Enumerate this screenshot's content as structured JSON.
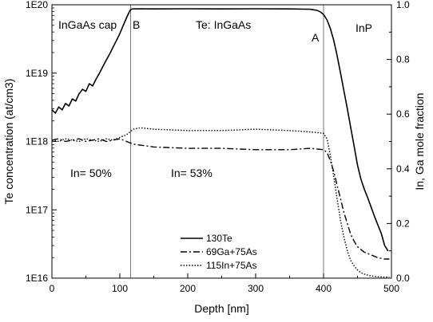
{
  "chart_data": {
    "type": "line",
    "title": "",
    "xlabel": "Depth [nm]",
    "ylabel_left": "Te concentration (at/cm3)",
    "ylabel_right": "In, Ga mole fraction",
    "xlim": [
      0,
      500
    ],
    "ylim_left": [
      1e+16,
      1e+20
    ],
    "yscale_left": "log",
    "ylim_right": [
      0.0,
      1.0
    ],
    "x_ticks": [
      "0",
      "100",
      "200",
      "300",
      "400",
      "500"
    ],
    "y_left_ticks": [
      "1E16",
      "1E17",
      "1E18",
      "1E19",
      "1E20"
    ],
    "y_right_ticks": [
      "0.0",
      "0.2",
      "0.4",
      "0.6",
      "0.8",
      "1.0"
    ],
    "grid": false,
    "legend_position": "bottom-center",
    "interfaces": [
      {
        "label": "B",
        "x": 116
      },
      {
        "label": "A",
        "x": 400
      }
    ],
    "annotations": [
      {
        "text": "InGaAs cap"
      },
      {
        "text": "Te: InGaAs"
      },
      {
        "text": "InP"
      },
      {
        "text": "In= 50%"
      },
      {
        "text": "In= 53%"
      }
    ],
    "series": [
      {
        "name": "130Te",
        "axis": "left",
        "style": "solid",
        "x": [
          0,
          5,
          10,
          15,
          20,
          25,
          30,
          35,
          40,
          45,
          50,
          55,
          60,
          65,
          70,
          75,
          80,
          85,
          90,
          95,
          100,
          105,
          110,
          115,
          118,
          130,
          150,
          200,
          250,
          300,
          350,
          380,
          390,
          395,
          400,
          405,
          410,
          415,
          420,
          425,
          430,
          435,
          440,
          445,
          450,
          455,
          460,
          465,
          470,
          475,
          480,
          485,
          490,
          495
        ],
        "y": [
          2.9e+18,
          2.6e+18,
          3.2e+18,
          2.9e+18,
          3.6e+18,
          3.3e+18,
          4.2e+18,
          3.9e+18,
          5e+18,
          5.8e+18,
          5.4e+18,
          7e+18,
          6.5e+18,
          8.2e+18,
          1e+19,
          1.25e+19,
          1.55e+19,
          1.9e+19,
          2.4e+19,
          3e+19,
          3.8e+19,
          5e+19,
          6.5e+19,
          8.3e+19,
          8.7e+19,
          8.75e+19,
          8.7e+19,
          8.75e+19,
          8.7e+19,
          8.75e+19,
          8.7e+19,
          8.6e+19,
          8.3e+19,
          7.9e+19,
          7.2e+19,
          6e+19,
          4.5e+19,
          3e+19,
          1.8e+19,
          1e+19,
          5.5e+18,
          3e+18,
          1.6e+18,
          8.5e+17,
          4.5e+17,
          2.8e+17,
          2e+17,
          1.5e+17,
          1.1e+17,
          8e+16,
          6e+16,
          4.5e+16,
          3e+16,
          2.5e+16
        ]
      },
      {
        "name": "69Ga+75As",
        "axis": "right",
        "style": "dash-dot",
        "x": [
          0,
          10,
          20,
          30,
          40,
          50,
          60,
          70,
          80,
          90,
          100,
          110,
          120,
          150,
          200,
          250,
          300,
          350,
          380,
          400,
          405,
          410,
          415,
          420,
          425,
          430,
          435,
          440,
          445,
          450,
          460,
          470,
          480,
          490,
          497
        ],
        "y": [
          0.505,
          0.51,
          0.5,
          0.505,
          0.51,
          0.5,
          0.505,
          0.51,
          0.5,
          0.505,
          0.51,
          0.5,
          0.49,
          0.48,
          0.475,
          0.475,
          0.47,
          0.47,
          0.475,
          0.47,
          0.46,
          0.43,
          0.39,
          0.34,
          0.29,
          0.24,
          0.2,
          0.16,
          0.135,
          0.115,
          0.095,
          0.085,
          0.075,
          0.07,
          0.07
        ]
      },
      {
        "name": "115In+75As",
        "axis": "right",
        "style": "dotted",
        "x": [
          0,
          10,
          20,
          30,
          40,
          50,
          60,
          70,
          80,
          90,
          100,
          110,
          115,
          120,
          130,
          150,
          200,
          250,
          300,
          350,
          380,
          400,
          405,
          410,
          415,
          420,
          425,
          430,
          435,
          440,
          445,
          450,
          455,
          460,
          470,
          480,
          490,
          497
        ],
        "y": [
          0.505,
          0.5,
          0.51,
          0.505,
          0.5,
          0.51,
          0.505,
          0.5,
          0.51,
          0.505,
          0.515,
          0.525,
          0.535,
          0.545,
          0.55,
          0.545,
          0.54,
          0.54,
          0.545,
          0.54,
          0.535,
          0.53,
          0.51,
          0.45,
          0.37,
          0.29,
          0.21,
          0.15,
          0.1,
          0.065,
          0.045,
          0.03,
          0.02,
          0.015,
          0.008,
          0.005,
          0.004,
          0.004
        ]
      }
    ]
  }
}
